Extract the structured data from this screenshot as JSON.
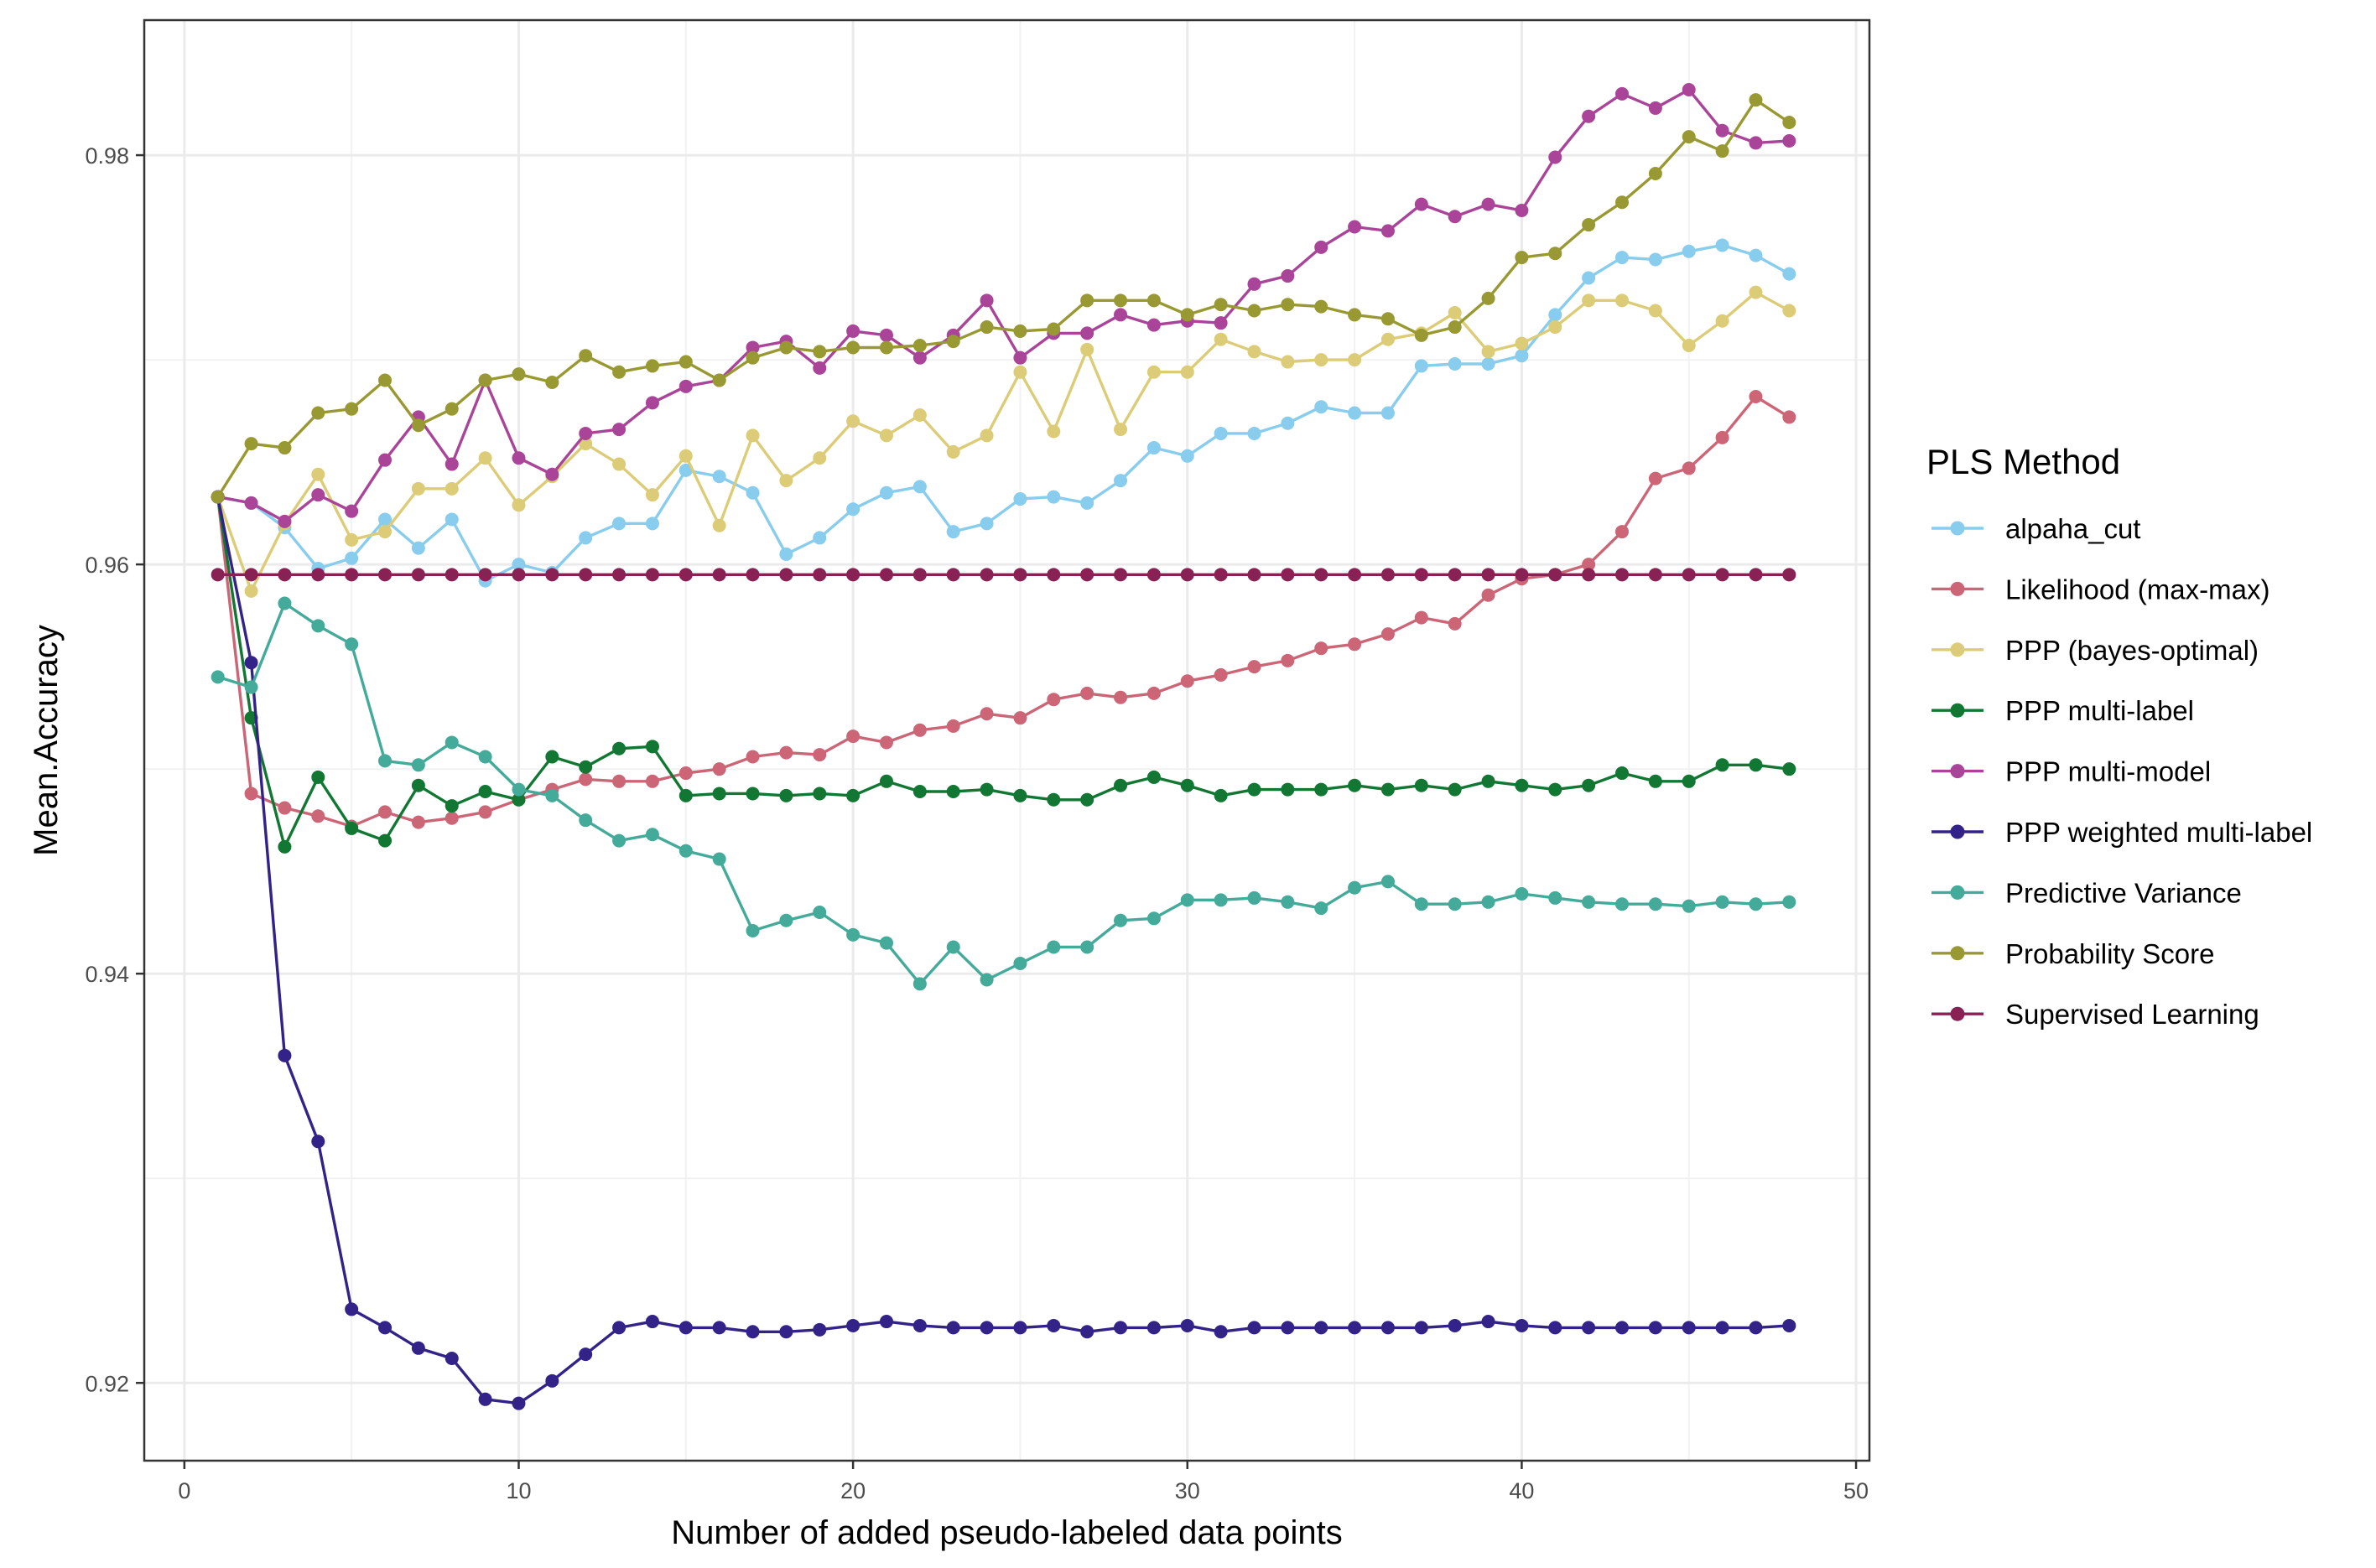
{
  "chart_data": {
    "type": "line",
    "title": "",
    "xlabel": "Number of added pseudo-labeled data points",
    "ylabel": "Mean.Accuracy",
    "xlim": [
      -1.2,
      50.4
    ],
    "ylim": [
      0.9162,
      0.9866
    ],
    "x_ticks": [
      0,
      10,
      20,
      30,
      40,
      50
    ],
    "y_ticks": [
      0.92,
      0.94,
      0.96,
      0.98
    ],
    "x_tick_labels": [
      "0",
      "10",
      "20",
      "30",
      "40",
      "50"
    ],
    "y_tick_labels": [
      "0.92",
      "0.94",
      "0.96",
      "0.98"
    ],
    "grid": true,
    "legend_title": "PLS Method",
    "legend_position": "right",
    "x": [
      1,
      2,
      3,
      4,
      5,
      6,
      7,
      8,
      9,
      10,
      11,
      12,
      13,
      14,
      15,
      16,
      17,
      18,
      19,
      20,
      21,
      22,
      23,
      24,
      25,
      26,
      27,
      28,
      29,
      30,
      31,
      32,
      33,
      34,
      35,
      36,
      37,
      38,
      39,
      40,
      41,
      42,
      43,
      44,
      45,
      46,
      47,
      48
    ],
    "series": [
      {
        "name": "alpaha_cut",
        "color": "#88ccee",
        "values": [
          0.9633,
          0.963,
          0.9618,
          0.9598,
          0.9603,
          0.9622,
          0.9608,
          0.9622,
          0.9592,
          0.96,
          0.9596,
          0.9613,
          0.962,
          0.962,
          0.9646,
          0.9643,
          0.9635,
          0.9605,
          0.9613,
          0.9627,
          0.9635,
          0.9638,
          0.9616,
          0.962,
          0.9632,
          0.9633,
          0.963,
          0.9641,
          0.9657,
          0.9653,
          0.9664,
          0.9664,
          0.9669,
          0.9677,
          0.9674,
          0.9674,
          0.9697,
          0.9698,
          0.9698,
          0.9702,
          0.9722,
          0.974,
          0.975,
          0.9749,
          0.9753,
          0.9756,
          0.9751,
          0.9742
        ]
      },
      {
        "name": "Likelihood (max-max)",
        "color": "#cc6677",
        "values": [
          0.9633,
          0.9488,
          0.9481,
          0.9477,
          0.9472,
          0.9479,
          0.9474,
          0.9476,
          0.9479,
          0.9485,
          0.949,
          0.9495,
          0.9494,
          0.9494,
          0.9498,
          0.95,
          0.9506,
          0.9508,
          0.9507,
          0.9516,
          0.9513,
          0.9519,
          0.9521,
          0.9527,
          0.9525,
          0.9534,
          0.9537,
          0.9535,
          0.9537,
          0.9543,
          0.9546,
          0.955,
          0.9553,
          0.9559,
          0.9561,
          0.9566,
          0.9574,
          0.9571,
          0.9585,
          0.9593,
          0.9595,
          0.96,
          0.9616,
          0.9642,
          0.9647,
          0.9662,
          0.9682,
          0.9672
        ]
      },
      {
        "name": "PPP (bayes-optimal)",
        "color": "#ddcc77",
        "values": [
          0.9633,
          0.9587,
          0.962,
          0.9644,
          0.9612,
          0.9616,
          0.9637,
          0.9637,
          0.9652,
          0.9629,
          0.9643,
          0.9659,
          0.9649,
          0.9634,
          0.9653,
          0.9619,
          0.9663,
          0.9641,
          0.9652,
          0.967,
          0.9663,
          0.9673,
          0.9655,
          0.9663,
          0.9694,
          0.9665,
          0.9705,
          0.9666,
          0.9694,
          0.9694,
          0.971,
          0.9704,
          0.9699,
          0.97,
          0.97,
          0.971,
          0.9713,
          0.9723,
          0.9704,
          0.9708,
          0.9716,
          0.9729,
          0.9729,
          0.9724,
          0.9707,
          0.9719,
          0.9733,
          0.9724
        ]
      },
      {
        "name": "PPP multi-label",
        "color": "#117733",
        "values": [
          0.9633,
          0.9525,
          0.9462,
          0.9496,
          0.9471,
          0.9465,
          0.9492,
          0.9482,
          0.9489,
          0.9485,
          0.9506,
          0.9501,
          0.951,
          0.9511,
          0.9487,
          0.9488,
          0.9488,
          0.9487,
          0.9488,
          0.9487,
          0.9494,
          0.9489,
          0.9489,
          0.949,
          0.9487,
          0.9485,
          0.9485,
          0.9492,
          0.9496,
          0.9492,
          0.9487,
          0.949,
          0.949,
          0.949,
          0.9492,
          0.949,
          0.9492,
          0.949,
          0.9494,
          0.9492,
          0.949,
          0.9492,
          0.9498,
          0.9494,
          0.9494,
          0.9502,
          0.9502,
          0.95
        ]
      },
      {
        "name": "PPP multi-model",
        "color": "#aa4499",
        "values": [
          0.9633,
          0.963,
          0.9621,
          0.9634,
          0.9626,
          0.9651,
          0.9672,
          0.9649,
          0.969,
          0.9652,
          0.9644,
          0.9664,
          0.9666,
          0.9679,
          0.9687,
          0.969,
          0.9706,
          0.9709,
          0.9696,
          0.9714,
          0.9712,
          0.9701,
          0.9712,
          0.9729,
          0.9701,
          0.9713,
          0.9713,
          0.9722,
          0.9717,
          0.9719,
          0.9718,
          0.9737,
          0.9741,
          0.9755,
          0.9765,
          0.9763,
          0.9776,
          0.977,
          0.9776,
          0.9773,
          0.9799,
          0.9819,
          0.983,
          0.9823,
          0.9832,
          0.9812,
          0.9806,
          0.9807
        ]
      },
      {
        "name": "PPP weighted multi-label",
        "color": "#332288",
        "values": [
          0.9633,
          0.9552,
          0.936,
          0.9318,
          0.9236,
          0.9227,
          0.9217,
          0.9212,
          0.9192,
          0.919,
          0.9201,
          0.9214,
          0.9227,
          0.923,
          0.9227,
          0.9227,
          0.9225,
          0.9225,
          0.9226,
          0.9228,
          0.923,
          0.9228,
          0.9227,
          0.9227,
          0.9227,
          0.9228,
          0.9225,
          0.9227,
          0.9227,
          0.9228,
          0.9225,
          0.9227,
          0.9227,
          0.9227,
          0.9227,
          0.9227,
          0.9227,
          0.9228,
          0.923,
          0.9228,
          0.9227,
          0.9227,
          0.9227,
          0.9227,
          0.9227,
          0.9227,
          0.9227,
          0.9228
        ]
      },
      {
        "name": "Predictive Variance",
        "color": "#44aa99",
        "values": [
          0.9545,
          0.954,
          0.9581,
          0.957,
          0.9561,
          0.9504,
          0.9502,
          0.9513,
          0.9506,
          0.949,
          0.9487,
          0.9475,
          0.9465,
          0.9468,
          0.946,
          0.9456,
          0.9421,
          0.9426,
          0.943,
          0.9419,
          0.9415,
          0.9395,
          0.9413,
          0.9397,
          0.9405,
          0.9413,
          0.9413,
          0.9426,
          0.9427,
          0.9436,
          0.9436,
          0.9437,
          0.9435,
          0.9432,
          0.9442,
          0.9445,
          0.9434,
          0.9434,
          0.9435,
          0.9439,
          0.9437,
          0.9435,
          0.9434,
          0.9434,
          0.9433,
          0.9435,
          0.9434,
          0.9435
        ]
      },
      {
        "name": "Probability Score",
        "color": "#999933",
        "values": [
          0.9633,
          0.9659,
          0.9657,
          0.9674,
          0.9676,
          0.969,
          0.9668,
          0.9676,
          0.969,
          0.9693,
          0.9689,
          0.9702,
          0.9694,
          0.9697,
          0.9699,
          0.969,
          0.9701,
          0.9706,
          0.9704,
          0.9706,
          0.9706,
          0.9707,
          0.9709,
          0.9716,
          0.9714,
          0.9715,
          0.9729,
          0.9729,
          0.9729,
          0.9722,
          0.9727,
          0.9724,
          0.9727,
          0.9726,
          0.9722,
          0.972,
          0.9712,
          0.9716,
          0.973,
          0.975,
          0.9752,
          0.9766,
          0.9777,
          0.9791,
          0.9809,
          0.9802,
          0.9827,
          0.9816
        ]
      },
      {
        "name": "Supervised Learning",
        "color": "#882255",
        "values": [
          0.9595,
          0.9595,
          0.9595,
          0.9595,
          0.9595,
          0.9595,
          0.9595,
          0.9595,
          0.9595,
          0.9595,
          0.9595,
          0.9595,
          0.9595,
          0.9595,
          0.9595,
          0.9595,
          0.9595,
          0.9595,
          0.9595,
          0.9595,
          0.9595,
          0.9595,
          0.9595,
          0.9595,
          0.9595,
          0.9595,
          0.9595,
          0.9595,
          0.9595,
          0.9595,
          0.9595,
          0.9595,
          0.9595,
          0.9595,
          0.9595,
          0.9595,
          0.9595,
          0.9595,
          0.9595,
          0.9595,
          0.9595,
          0.9595,
          0.9595,
          0.9595,
          0.9595,
          0.9595,
          0.9595,
          0.9595
        ]
      }
    ]
  }
}
